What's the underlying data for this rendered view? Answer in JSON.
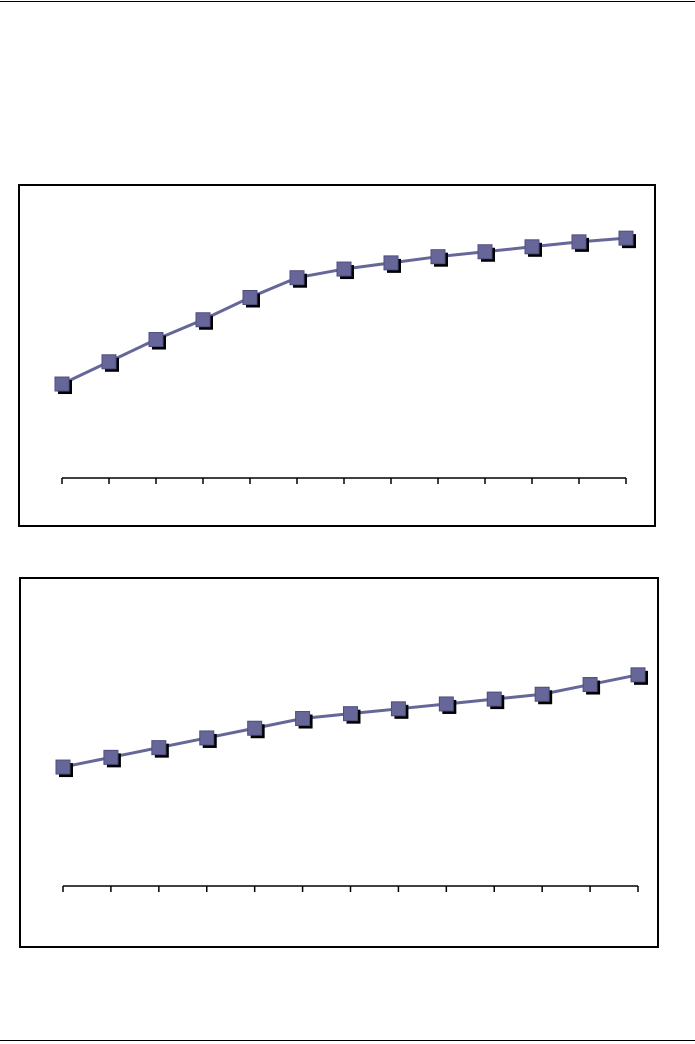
{
  "colors": {
    "series": "#666699",
    "marker_shadow": "#000000",
    "axis": "#000000"
  },
  "chart_data": [
    {
      "type": "line",
      "title": "",
      "xlabel": "",
      "ylabel": "",
      "x": [
        1,
        2,
        3,
        4,
        5,
        6,
        7,
        8,
        9,
        10,
        11,
        12,
        13
      ],
      "series": [
        {
          "values": [
            38,
            47,
            56,
            64,
            73,
            81,
            84.5,
            87,
            89.5,
            91.5,
            93.5,
            95.5,
            97
          ]
        }
      ],
      "ylim": [
        0,
        110
      ],
      "grid": false,
      "legend": "none",
      "tick_labels_visible": false
    },
    {
      "type": "line",
      "title": "",
      "xlabel": "",
      "ylabel": "",
      "x": [
        1,
        2,
        3,
        4,
        5,
        6,
        7,
        8,
        9,
        10,
        11,
        12,
        13
      ],
      "series": [
        {
          "values": [
            49,
            53,
            57,
            61,
            65,
            69,
            71,
            73,
            75,
            77,
            79,
            83,
            87
          ]
        }
      ],
      "ylim": [
        0,
        110
      ],
      "grid": false,
      "legend": "none",
      "tick_labels_visible": false
    }
  ]
}
